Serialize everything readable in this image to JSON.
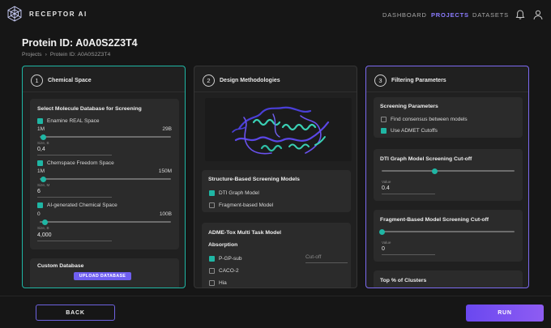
{
  "header": {
    "brand": "RECEPTOR AI",
    "nav": [
      "DASHBOARD",
      "PROJECTS",
      "DATASETS"
    ],
    "active_nav": "PROJECTS",
    "accent": "#8b7cff"
  },
  "page": {
    "title": "Protein ID: A0A0S2Z3T4",
    "breadcrumb": [
      "Projects",
      "Protein ID: A0A0S2Z3T4"
    ]
  },
  "panel1": {
    "step": "1",
    "title": "Chemical Space",
    "accent": "#1fb6a4",
    "db_title": "Select Molecule Database for Screening",
    "databases": [
      {
        "name": "Enamine REAL Space",
        "checked": true,
        "min": "1M",
        "max": "29B",
        "size_label": "Size, B",
        "value": "0,4",
        "fraction": 0.03
      },
      {
        "name": "Chemspace Freedom Space",
        "checked": true,
        "min": "1M",
        "max": "150M",
        "size_label": "Size, M",
        "value": "6",
        "fraction": 0.03
      },
      {
        "name": "AI-generated Chemical Space",
        "checked": true,
        "min": "0",
        "max": "100B",
        "size_label": "Size, B",
        "value": "4,000",
        "fraction": 0.04
      }
    ],
    "custom_title": "Custom Database",
    "upload_label": "UPLOAD DATABASE"
  },
  "panel2": {
    "step": "2",
    "title": "Design Methodologies",
    "structure_title": "Structure-Based Screening Models",
    "models": [
      {
        "name": "DTI Graph Model",
        "checked": true
      },
      {
        "name": "Fragment-based Model",
        "checked": false
      }
    ],
    "admet_title": "ADME-Tox Multi Task Model",
    "absorption_title": "Absorption",
    "absorption": [
      {
        "name": "P-GP-sub",
        "checked": true
      },
      {
        "name": "CACO-2",
        "checked": false
      },
      {
        "name": "Hia",
        "checked": false
      }
    ],
    "cutoff_placeholder": "Cut-off"
  },
  "panel3": {
    "step": "3",
    "title": "Filtering Parameters",
    "accent": "#7c6af0",
    "screening_title": "Screening Parameters",
    "options": [
      {
        "name": "Find consensus between models",
        "checked": false
      },
      {
        "name": "Use ADMET Cutoffs",
        "checked": true
      }
    ],
    "dti_title": "DTI Graph Model Screening Cut-off",
    "dti_value_label": "Value",
    "dti_value": "0.4",
    "dti_fraction": 0.4,
    "frag_title": "Fragment-Based Model Screening Cut-off",
    "frag_value_label": "Value",
    "frag_value": "0",
    "frag_fraction": 0.0,
    "clusters_title": "Top % of Clusters"
  },
  "footer": {
    "back_label": "BACK",
    "run_label": "RUN"
  }
}
